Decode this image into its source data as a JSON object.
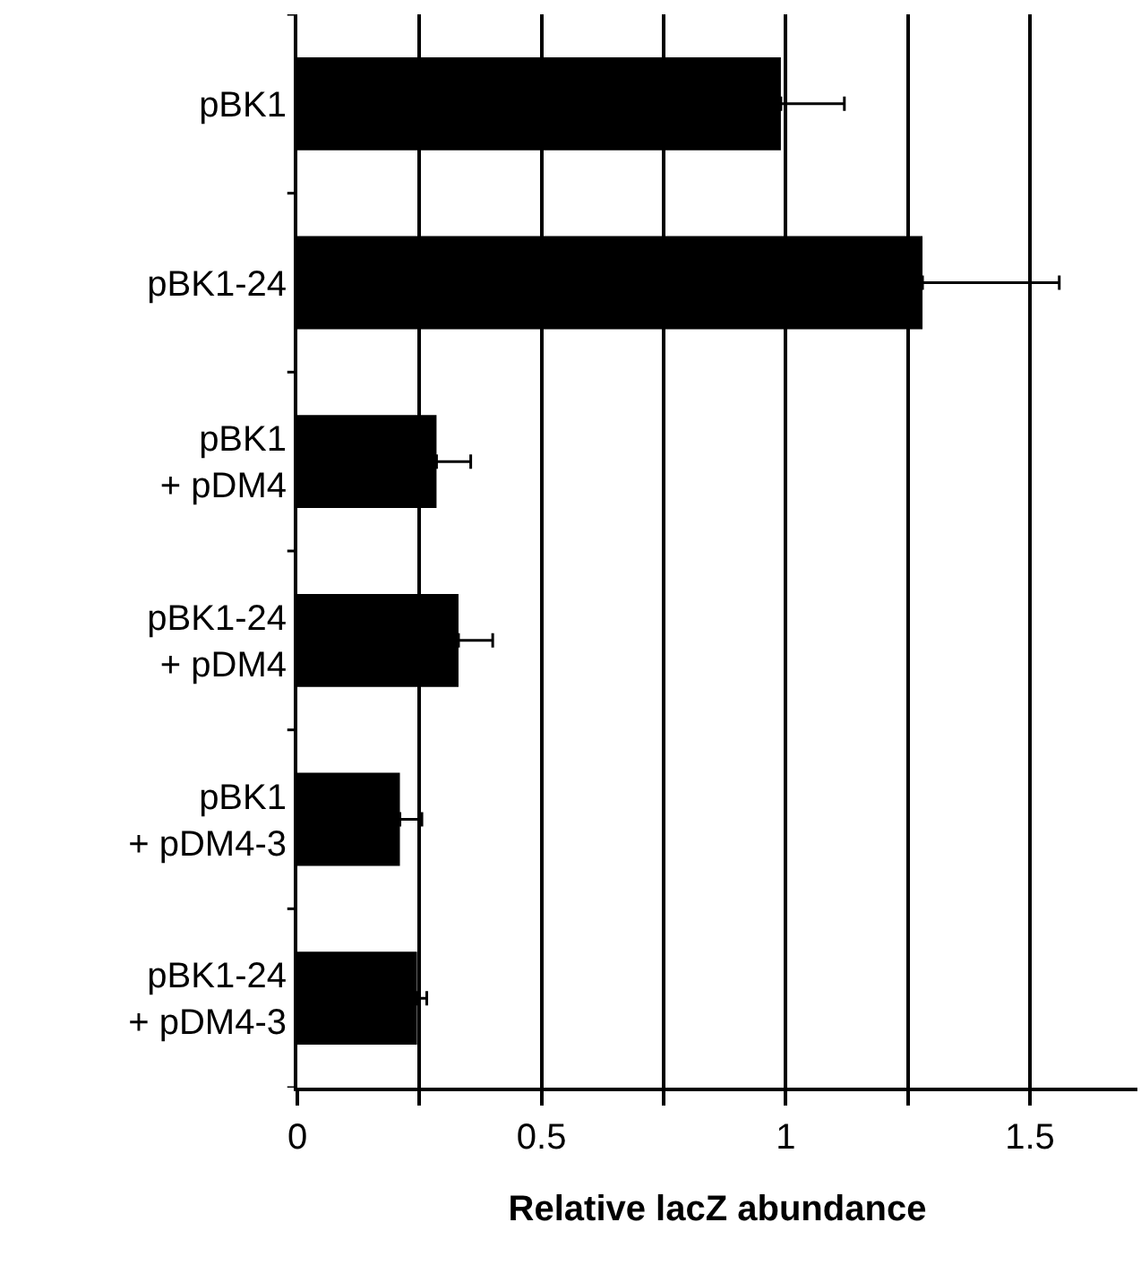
{
  "chart_data": {
    "type": "bar",
    "orientation": "horizontal",
    "xlabel": "Relative lacZ abundance",
    "categories": [
      "pBK1",
      "pBK1-24",
      "pBK1\n+ pDM4",
      "pBK1-24\n+ pDM4",
      "pBK1\n+ pDM4-3",
      "pBK1-24\n+ pDM4-3"
    ],
    "values": [
      0.99,
      1.28,
      0.285,
      0.33,
      0.21,
      0.245
    ],
    "errors": [
      0.13,
      0.28,
      0.07,
      0.07,
      0.045,
      0.02
    ],
    "color": "#000000",
    "xlim": [
      0,
      1.72
    ],
    "xticks": [
      0,
      {
        "value": 0.25,
        "label": null
      },
      0.5,
      {
        "value": 0.75,
        "label": null
      },
      1,
      {
        "value": 1.25,
        "label": null
      },
      1.5
    ],
    "grid": "x",
    "legend": false
  }
}
